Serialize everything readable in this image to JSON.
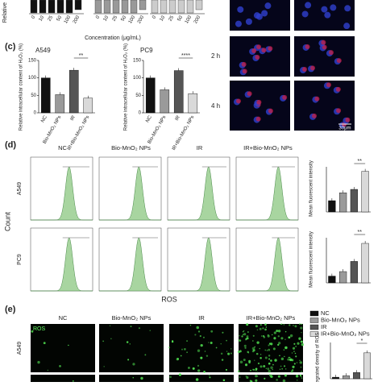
{
  "top_strip": {
    "y_label": "Relative",
    "x_label": "Concentration (μg/mL)",
    "x_ticks": [
      "0",
      "10",
      "25",
      "50",
      "100",
      "200"
    ]
  },
  "panel_c": {
    "label": "(c)",
    "y_label": "Relative intracellular content of H₂O₂ (%)",
    "ylim": [
      0,
      150
    ],
    "yticks": [
      0,
      50,
      100,
      150
    ],
    "groups": [
      "NC",
      "Bio-MnO₂ NPs",
      "IR",
      "IR+Bio-MnO₂ NPs"
    ],
    "charts": [
      {
        "title": "A549",
        "values": [
          100,
          52,
          122,
          42
        ],
        "significance": "**"
      },
      {
        "title": "PC9",
        "values": [
          100,
          66,
          121,
          55
        ],
        "significance": "****"
      }
    ],
    "time_labels": [
      "2 h",
      "4 h"
    ],
    "scale_bar": "30μm"
  },
  "panel_d": {
    "label": "(d)",
    "columns": [
      "NC",
      "Bio-MnO₂ NPs",
      "IR",
      "IR+Bio-MnO₂ NPs"
    ],
    "rows": [
      "A549",
      "PC9"
    ],
    "y_label": "Count",
    "x_label": "ROS",
    "bar_y_label": "Mean fluorescent intensity",
    "bar_charts": [
      {
        "values": [
          1.0,
          1.7,
          2.0,
          3.6
        ],
        "ylim": [
          0,
          4
        ],
        "significance": "**"
      },
      {
        "values": [
          0.6,
          1.0,
          1.9,
          3.5
        ],
        "ylim": [
          0,
          4
        ],
        "significance": "**"
      }
    ]
  },
  "legend": {
    "items": [
      {
        "name": "NC",
        "color": "#111111"
      },
      {
        "name": "Bio-MnO₂ NPs",
        "color": "#9a9a9a"
      },
      {
        "name": "IR",
        "color": "#555555"
      },
      {
        "name": "IR+Bio-MnO₂ NPs",
        "color": "#d9d9d9"
      }
    ]
  },
  "panel_e": {
    "label": "(e)",
    "columns": [
      "NC",
      "Bio-MnO₂ NPs",
      "IR",
      "IR+Bio-MnO₂ NPs"
    ],
    "rows": [
      "A549"
    ],
    "channel": "ROS",
    "bar_y_label": "Integrated density of ROS",
    "values": [
      3,
      6,
      12,
      50
    ],
    "ylim": [
      0,
      70
    ],
    "significance": "*"
  }
}
